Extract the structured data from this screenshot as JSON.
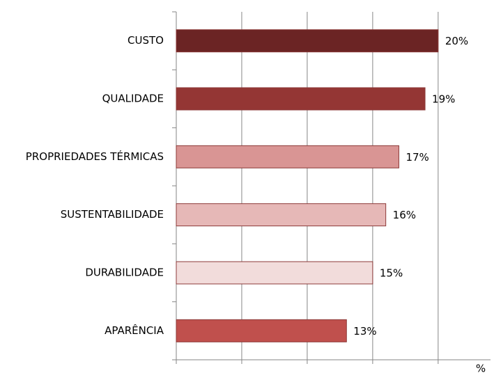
{
  "chart_data": {
    "type": "barh",
    "categories": [
      "CUSTO",
      "QUALIDADE",
      "PROPRIEDADES TÉRMICAS",
      "SUSTENTABILIDADE",
      "DURABILIDADE",
      "APARÊNCIA"
    ],
    "values": [
      20,
      19,
      17,
      16,
      15,
      13
    ],
    "value_labels": [
      "20%",
      "19%",
      "17%",
      "16%",
      "15%",
      "13%"
    ],
    "colors": [
      "#6b2424",
      "#943634",
      "#d99594",
      "#e6b8b7",
      "#f2dcdb",
      "#c0504d"
    ],
    "x_label": "%",
    "xlim": [
      0,
      24
    ],
    "xticks": [
      0,
      5,
      10,
      15,
      20
    ],
    "grid": true
  }
}
